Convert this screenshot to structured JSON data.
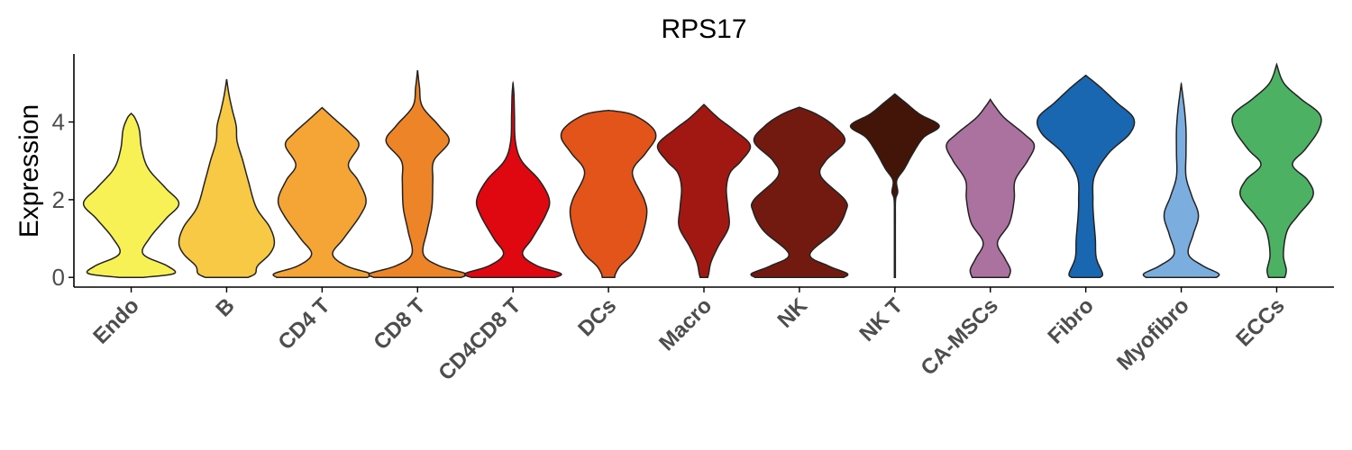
{
  "chart_data": {
    "type": "violin",
    "title": "RPS17",
    "xlabel": "",
    "ylabel": "Expression",
    "ylim": [
      -0.25,
      5.75
    ],
    "yticks": [
      0,
      2,
      4
    ],
    "legend": "none",
    "grid": false,
    "categories": [
      "Endo",
      "B",
      "CD4 T",
      "CD8 T",
      "CD4CD8 T",
      "DCs",
      "Macro",
      "NK",
      "NK T",
      "CA-MSCs",
      "Fibro",
      "Myofibro",
      "ECCs"
    ],
    "series": [
      {
        "category": "Endo",
        "color": "#F7F156",
        "min": 0,
        "max": 4.22,
        "profile": [
          [
            0,
            0.25
          ],
          [
            0.1,
            0.9
          ],
          [
            0.3,
            0.75
          ],
          [
            0.6,
            0.25
          ],
          [
            1.0,
            0.38
          ],
          [
            1.5,
            0.72
          ],
          [
            1.9,
            1.0
          ],
          [
            2.3,
            0.72
          ],
          [
            2.8,
            0.36
          ],
          [
            3.3,
            0.22
          ],
          [
            3.8,
            0.17
          ],
          [
            4.1,
            0.08
          ],
          [
            4.22,
            0
          ]
        ]
      },
      {
        "category": "B",
        "color": "#F7C945",
        "min": 0,
        "max": 5.1,
        "profile": [
          [
            0,
            0.45
          ],
          [
            0.1,
            0.6
          ],
          [
            0.3,
            0.65
          ],
          [
            0.6,
            0.9
          ],
          [
            0.9,
            1.0
          ],
          [
            1.3,
            0.9
          ],
          [
            1.8,
            0.62
          ],
          [
            2.5,
            0.45
          ],
          [
            3.0,
            0.34
          ],
          [
            3.5,
            0.22
          ],
          [
            3.9,
            0.2
          ],
          [
            4.3,
            0.12
          ],
          [
            4.7,
            0.05
          ],
          [
            5.1,
            0
          ]
        ]
      },
      {
        "category": "CD4 T",
        "color": "#F4A535",
        "min": 0,
        "max": 4.37,
        "profile": [
          [
            0,
            0.95
          ],
          [
            0.1,
            1.0
          ],
          [
            0.3,
            0.5
          ],
          [
            0.6,
            0.22
          ],
          [
            1.0,
            0.45
          ],
          [
            1.6,
            0.8
          ],
          [
            2.0,
            0.92
          ],
          [
            2.5,
            0.75
          ],
          [
            2.9,
            0.55
          ],
          [
            3.4,
            0.77
          ],
          [
            3.7,
            0.6
          ],
          [
            4.1,
            0.24
          ],
          [
            4.37,
            0
          ]
        ]
      },
      {
        "category": "CD8 T",
        "color": "#ED8427",
        "min": 0,
        "max": 5.33,
        "profile": [
          [
            0,
            0.92
          ],
          [
            0.1,
            1.0
          ],
          [
            0.3,
            0.45
          ],
          [
            0.6,
            0.12
          ],
          [
            1.2,
            0.2
          ],
          [
            1.8,
            0.3
          ],
          [
            2.5,
            0.32
          ],
          [
            3.0,
            0.34
          ],
          [
            3.5,
            0.66
          ],
          [
            3.9,
            0.45
          ],
          [
            4.4,
            0.1
          ],
          [
            4.9,
            0.04
          ],
          [
            5.33,
            0
          ]
        ]
      },
      {
        "category": "CD4CD8 T",
        "color": "#DF0710",
        "min": 0,
        "max": 5.0,
        "profile": [
          [
            0,
            0.88
          ],
          [
            0.1,
            1.0
          ],
          [
            0.3,
            0.5
          ],
          [
            0.6,
            0.2
          ],
          [
            1.0,
            0.4
          ],
          [
            1.6,
            0.68
          ],
          [
            2.0,
            0.76
          ],
          [
            2.5,
            0.55
          ],
          [
            3.0,
            0.18
          ],
          [
            3.5,
            0.05
          ],
          [
            4.2,
            0.03
          ],
          [
            4.7,
            0.02
          ],
          [
            5.0,
            0
          ]
        ]
      },
      {
        "category": "DCs",
        "color": "#E3541A",
        "min": 0,
        "max": 4.3,
        "profile": [
          [
            0,
            0.13
          ],
          [
            0.1,
            0.15
          ],
          [
            0.3,
            0.25
          ],
          [
            0.6,
            0.5
          ],
          [
            1.0,
            0.68
          ],
          [
            1.6,
            0.8
          ],
          [
            2.0,
            0.75
          ],
          [
            2.7,
            0.5
          ],
          [
            3.2,
            0.78
          ],
          [
            3.6,
            0.99
          ],
          [
            3.9,
            0.88
          ],
          [
            4.2,
            0.48
          ],
          [
            4.3,
            0
          ]
        ]
      },
      {
        "category": "Macro",
        "color": "#A11812",
        "min": 0,
        "max": 4.45,
        "profile": [
          [
            0,
            0.08
          ],
          [
            0.1,
            0.1
          ],
          [
            0.4,
            0.15
          ],
          [
            0.8,
            0.3
          ],
          [
            1.3,
            0.52
          ],
          [
            1.8,
            0.5
          ],
          [
            2.3,
            0.47
          ],
          [
            2.7,
            0.55
          ],
          [
            3.0,
            0.78
          ],
          [
            3.4,
            0.97
          ],
          [
            3.8,
            0.62
          ],
          [
            4.1,
            0.3
          ],
          [
            4.45,
            0
          ]
        ]
      },
      {
        "category": "NK",
        "color": "#731A10",
        "min": 0,
        "max": 4.38,
        "profile": [
          [
            0,
            0.93
          ],
          [
            0.1,
            1.0
          ],
          [
            0.3,
            0.6
          ],
          [
            0.6,
            0.22
          ],
          [
            1.2,
            0.75
          ],
          [
            1.7,
            0.97
          ],
          [
            2.0,
            0.95
          ],
          [
            2.6,
            0.45
          ],
          [
            3.0,
            0.55
          ],
          [
            3.5,
            0.95
          ],
          [
            3.9,
            0.72
          ],
          [
            4.2,
            0.36
          ],
          [
            4.38,
            0
          ]
        ]
      },
      {
        "category": "NK T",
        "color": "#431408",
        "min": 0,
        "max": 4.72,
        "profile": [
          [
            0,
            0.01
          ],
          [
            0.5,
            0.01
          ],
          [
            1.5,
            0.01
          ],
          [
            2.0,
            0.015
          ],
          [
            2.2,
            0.06
          ],
          [
            2.5,
            0.04
          ],
          [
            2.8,
            0.2
          ],
          [
            3.2,
            0.38
          ],
          [
            3.6,
            0.6
          ],
          [
            3.9,
            0.93
          ],
          [
            4.2,
            0.52
          ],
          [
            4.5,
            0.22
          ],
          [
            4.72,
            0
          ]
        ]
      },
      {
        "category": "CA-MSCs",
        "color": "#AB719F",
        "min": 0,
        "max": 4.58,
        "profile": [
          [
            0,
            0.38
          ],
          [
            0.2,
            0.42
          ],
          [
            0.5,
            0.3
          ],
          [
            0.9,
            0.15
          ],
          [
            1.4,
            0.4
          ],
          [
            2.0,
            0.5
          ],
          [
            2.5,
            0.52
          ],
          [
            3.0,
            0.78
          ],
          [
            3.4,
            0.92
          ],
          [
            3.7,
            0.7
          ],
          [
            4.1,
            0.3
          ],
          [
            4.4,
            0.1
          ],
          [
            4.58,
            0
          ]
        ]
      },
      {
        "category": "Fibro",
        "color": "#1A67B1",
        "min": 0,
        "max": 5.2,
        "profile": [
          [
            0,
            0.3
          ],
          [
            0.1,
            0.35
          ],
          [
            0.5,
            0.22
          ],
          [
            1.0,
            0.2
          ],
          [
            1.6,
            0.16
          ],
          [
            2.0,
            0.15
          ],
          [
            2.6,
            0.18
          ],
          [
            3.2,
            0.48
          ],
          [
            3.7,
            0.92
          ],
          [
            4.1,
            1.0
          ],
          [
            4.5,
            0.65
          ],
          [
            4.9,
            0.3
          ],
          [
            5.2,
            0
          ]
        ]
      },
      {
        "category": "Myofibro",
        "color": "#7BAEDE",
        "min": 0,
        "max": 4.98,
        "profile": [
          [
            0,
            0.74
          ],
          [
            0.1,
            0.78
          ],
          [
            0.3,
            0.45
          ],
          [
            0.6,
            0.15
          ],
          [
            1.1,
            0.25
          ],
          [
            1.6,
            0.36
          ],
          [
            2.1,
            0.22
          ],
          [
            2.6,
            0.1
          ],
          [
            3.2,
            0.1
          ],
          [
            3.8,
            0.1
          ],
          [
            4.3,
            0.07
          ],
          [
            4.7,
            0.03
          ],
          [
            4.98,
            0
          ]
        ]
      },
      {
        "category": "ECCs",
        "color": "#4CB163",
        "min": 0,
        "max": 5.48,
        "profile": [
          [
            0,
            0.17
          ],
          [
            0.2,
            0.2
          ],
          [
            0.6,
            0.14
          ],
          [
            1.2,
            0.22
          ],
          [
            1.6,
            0.45
          ],
          [
            2.1,
            0.76
          ],
          [
            2.5,
            0.65
          ],
          [
            2.9,
            0.33
          ],
          [
            3.3,
            0.6
          ],
          [
            3.8,
            0.88
          ],
          [
            4.2,
            0.9
          ],
          [
            4.6,
            0.5
          ],
          [
            5.0,
            0.15
          ],
          [
            5.48,
            0
          ]
        ]
      }
    ]
  }
}
